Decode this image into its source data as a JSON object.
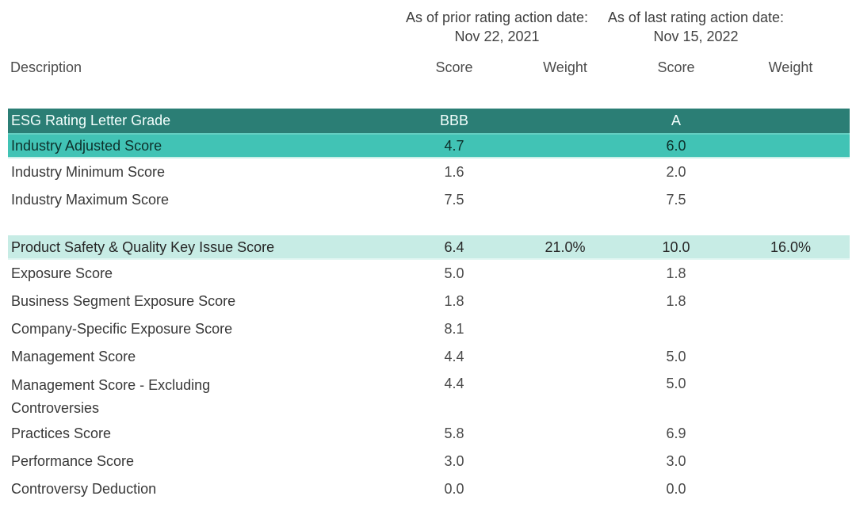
{
  "header": {
    "description_label": "Description",
    "prior_group": {
      "line1": "As of prior rating action date:",
      "line2": "Nov 22, 2021"
    },
    "last_group": {
      "line1": "As of last rating action date:",
      "line2": "Nov 15, 2022"
    },
    "columns": {
      "prior_score": "Score",
      "prior_weight": "Weight",
      "last_score": "Score",
      "last_weight": "Weight"
    }
  },
  "colors": {
    "band_dark": "#2b7e75",
    "band_medium": "#41c3b5",
    "band_light": "#c7ece5",
    "body_text": "#3d3d3d",
    "band_dark_text": "#ffffff"
  },
  "table": {
    "rows": [
      {
        "label": "ESG Rating Letter Grade",
        "prior_score": "BBB",
        "prior_weight": "",
        "last_score": "A",
        "last_weight": ""
      },
      {
        "label": "Industry Adjusted Score",
        "prior_score": "4.7",
        "prior_weight": "",
        "last_score": "6.0",
        "last_weight": ""
      },
      {
        "label": "Industry Minimum Score",
        "prior_score": "1.6",
        "prior_weight": "",
        "last_score": "2.0",
        "last_weight": ""
      },
      {
        "label": "Industry Maximum Score",
        "prior_score": "7.5",
        "prior_weight": "",
        "last_score": "7.5",
        "last_weight": ""
      },
      {
        "label": "Product Safety & Quality Key Issue Score",
        "prior_score": "6.4",
        "prior_weight": "21.0%",
        "last_score": "10.0",
        "last_weight": "16.0%"
      },
      {
        "label": "Exposure Score",
        "prior_score": "5.0",
        "prior_weight": "",
        "last_score": "1.8",
        "last_weight": ""
      },
      {
        "label": "Business Segment Exposure Score",
        "prior_score": "1.8",
        "prior_weight": "",
        "last_score": "1.8",
        "last_weight": ""
      },
      {
        "label": "Company-Specific Exposure Score",
        "prior_score": "8.1",
        "prior_weight": "",
        "last_score": "",
        "last_weight": ""
      },
      {
        "label": "Management Score",
        "prior_score": "4.4",
        "prior_weight": "",
        "last_score": "5.0",
        "last_weight": ""
      },
      {
        "label": "Management Score - Excluding Controversies",
        "prior_score": "4.4",
        "prior_weight": "",
        "last_score": "5.0",
        "last_weight": ""
      },
      {
        "label": "Practices Score",
        "prior_score": "5.8",
        "prior_weight": "",
        "last_score": "6.9",
        "last_weight": ""
      },
      {
        "label": "Performance Score",
        "prior_score": "3.0",
        "prior_weight": "",
        "last_score": "3.0",
        "last_weight": ""
      },
      {
        "label": "Controversy Deduction",
        "prior_score": "0.0",
        "prior_weight": "",
        "last_score": "0.0",
        "last_weight": ""
      }
    ]
  }
}
